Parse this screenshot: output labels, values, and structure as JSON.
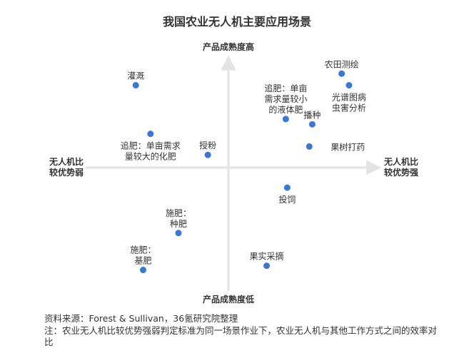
{
  "chart_data": {
    "type": "scatter",
    "title": "我国农业无人机主要应用场景",
    "y_top_label": "产品成熟度高",
    "y_bottom_label": "产品成熟度低",
    "x_left_label": [
      "无人机比",
      "较优势弱"
    ],
    "x_right_label": [
      "无人机比",
      "较优势强"
    ],
    "xlim": [
      -1,
      1
    ],
    "ylim": [
      -1,
      1
    ],
    "points": [
      {
        "label": [
          "农田测绘"
        ],
        "x": 0.77,
        "y": 0.89,
        "color": "#3a78d8",
        "label_pos": "above"
      },
      {
        "label": [
          "光谱图病",
          "虫害分析"
        ],
        "x": 0.82,
        "y": 0.78,
        "color": "#3a78d8",
        "label_pos": "below"
      },
      {
        "label": [
          "灌溉"
        ],
        "x": -0.63,
        "y": 0.78,
        "color": "#3a78d8",
        "label_pos": "above"
      },
      {
        "label": [
          "追肥：单亩",
          "需求量较小",
          "的液体肥"
        ],
        "x": 0.39,
        "y": 0.46,
        "color": "#3a78d8",
        "label_pos": "above"
      },
      {
        "label": [
          "播种"
        ],
        "x": 0.57,
        "y": 0.41,
        "color": "#3a78d8",
        "label_pos": "above"
      },
      {
        "label": [
          "追肥：单亩需求",
          "量较大的化肥"
        ],
        "x": -0.53,
        "y": 0.32,
        "color": "#3a78d8",
        "label_pos": "below"
      },
      {
        "label": [
          "果树打药"
        ],
        "x": 0.55,
        "y": 0.2,
        "color": "#3a78d8",
        "label_pos": "right"
      },
      {
        "label": [
          "授粉"
        ],
        "x": -0.14,
        "y": 0.12,
        "color": "#3a78d8",
        "label_pos": "above"
      },
      {
        "label": [
          "投饲"
        ],
        "x": 0.4,
        "y": -0.19,
        "color": "#3a78d8",
        "label_pos": "below"
      },
      {
        "label": [
          "施肥：",
          "种肥"
        ],
        "x": -0.34,
        "y": -0.62,
        "color": "#3a78d8",
        "label_pos": "above"
      },
      {
        "label": [
          "施肥：",
          "基肥"
        ],
        "x": -0.58,
        "y": -0.97,
        "color": "#3a78d8",
        "label_pos": "above"
      },
      {
        "label": [
          "果实采摘"
        ],
        "x": 0.26,
        "y": -0.93,
        "color": "#3a78d8",
        "label_pos": "above"
      }
    ]
  },
  "footnotes": {
    "source": "资料来源：Forest & Sullivan，36氪研究院整理",
    "note": "注：农业无人机比较优势强弱判定标准为同一场景作业下，农业无人机与其他工作方式之间的效率对比"
  }
}
